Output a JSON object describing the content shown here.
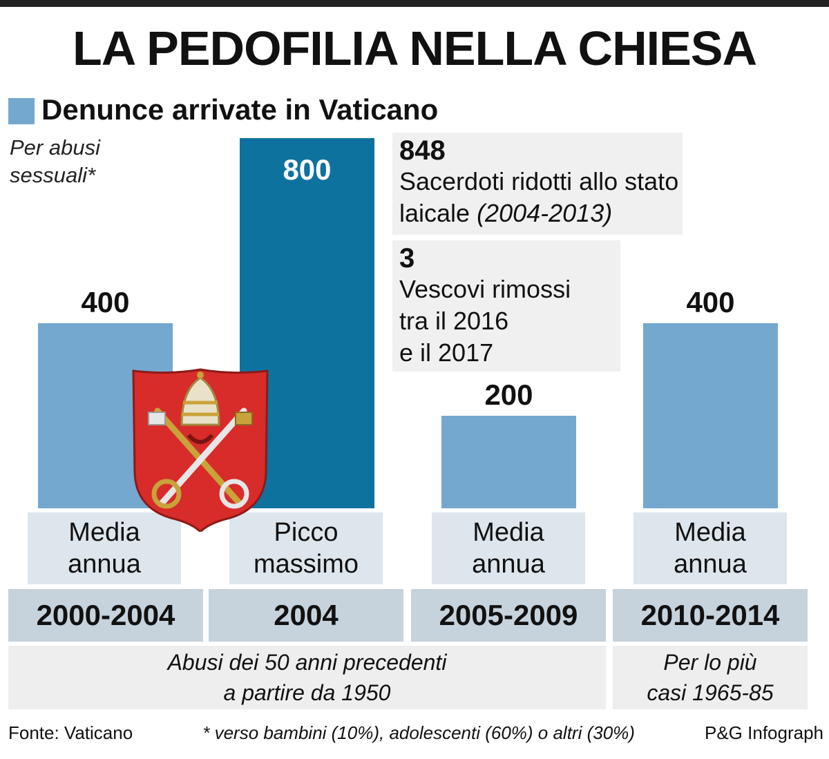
{
  "title": "LA PEDOFILIA NELLA CHIESA",
  "legend": {
    "label": "Denunce arrivate in Vaticano",
    "color": "#74a8cf"
  },
  "note": [
    "Per abusi",
    "sessuali*"
  ],
  "chart_data": {
    "type": "bar",
    "categories": [
      "2000-2004",
      "2004",
      "2005-2009",
      "2010-2014"
    ],
    "values": [
      400,
      800,
      200,
      400
    ],
    "value_labels": [
      "400",
      "800",
      "200",
      "400"
    ],
    "sublabels": [
      [
        "Media",
        "annua"
      ],
      [
        "Picco",
        "massimo"
      ],
      [
        "Media",
        "annua"
      ],
      [
        "Media",
        "annua"
      ]
    ],
    "series": [
      {
        "name": "Denunce arrivate in Vaticano",
        "values": [
          400,
          800,
          200,
          400
        ]
      }
    ],
    "colors": [
      "#74a8cf",
      "#0e729f",
      "#74a8cf",
      "#74a8cf"
    ],
    "ylim": [
      0,
      800
    ],
    "grid": false,
    "legend_position": "top-left",
    "title": "LA PEDOFILIA NELLA CHIESA",
    "xlabel": "",
    "ylabel": ""
  },
  "info": [
    {
      "number": "848",
      "lines": [
        "Sacerdoti ridotti allo stato"
      ],
      "last_line": "laicale ",
      "last_italic": "(2004-2013)"
    },
    {
      "number": "3",
      "lines": [
        "Vescovi rimossi",
        "tra il 2016",
        "e il 2017"
      ]
    }
  ],
  "footnotes": [
    {
      "lines": [
        "Abusi dei 50 anni precedenti",
        "a partire da 1950"
      ]
    },
    {
      "lines": [
        "Per lo più",
        "casi 1965-85"
      ]
    }
  ],
  "source": {
    "left": "Fonte: Vaticano",
    "middle": "* verso bambini (10%), adolescenti (60%) o altri (30%)",
    "right": "P&G Infograph"
  },
  "emblem": {
    "icon": "vatican-coat-of-arms-icon",
    "color": "#d72c2a"
  }
}
